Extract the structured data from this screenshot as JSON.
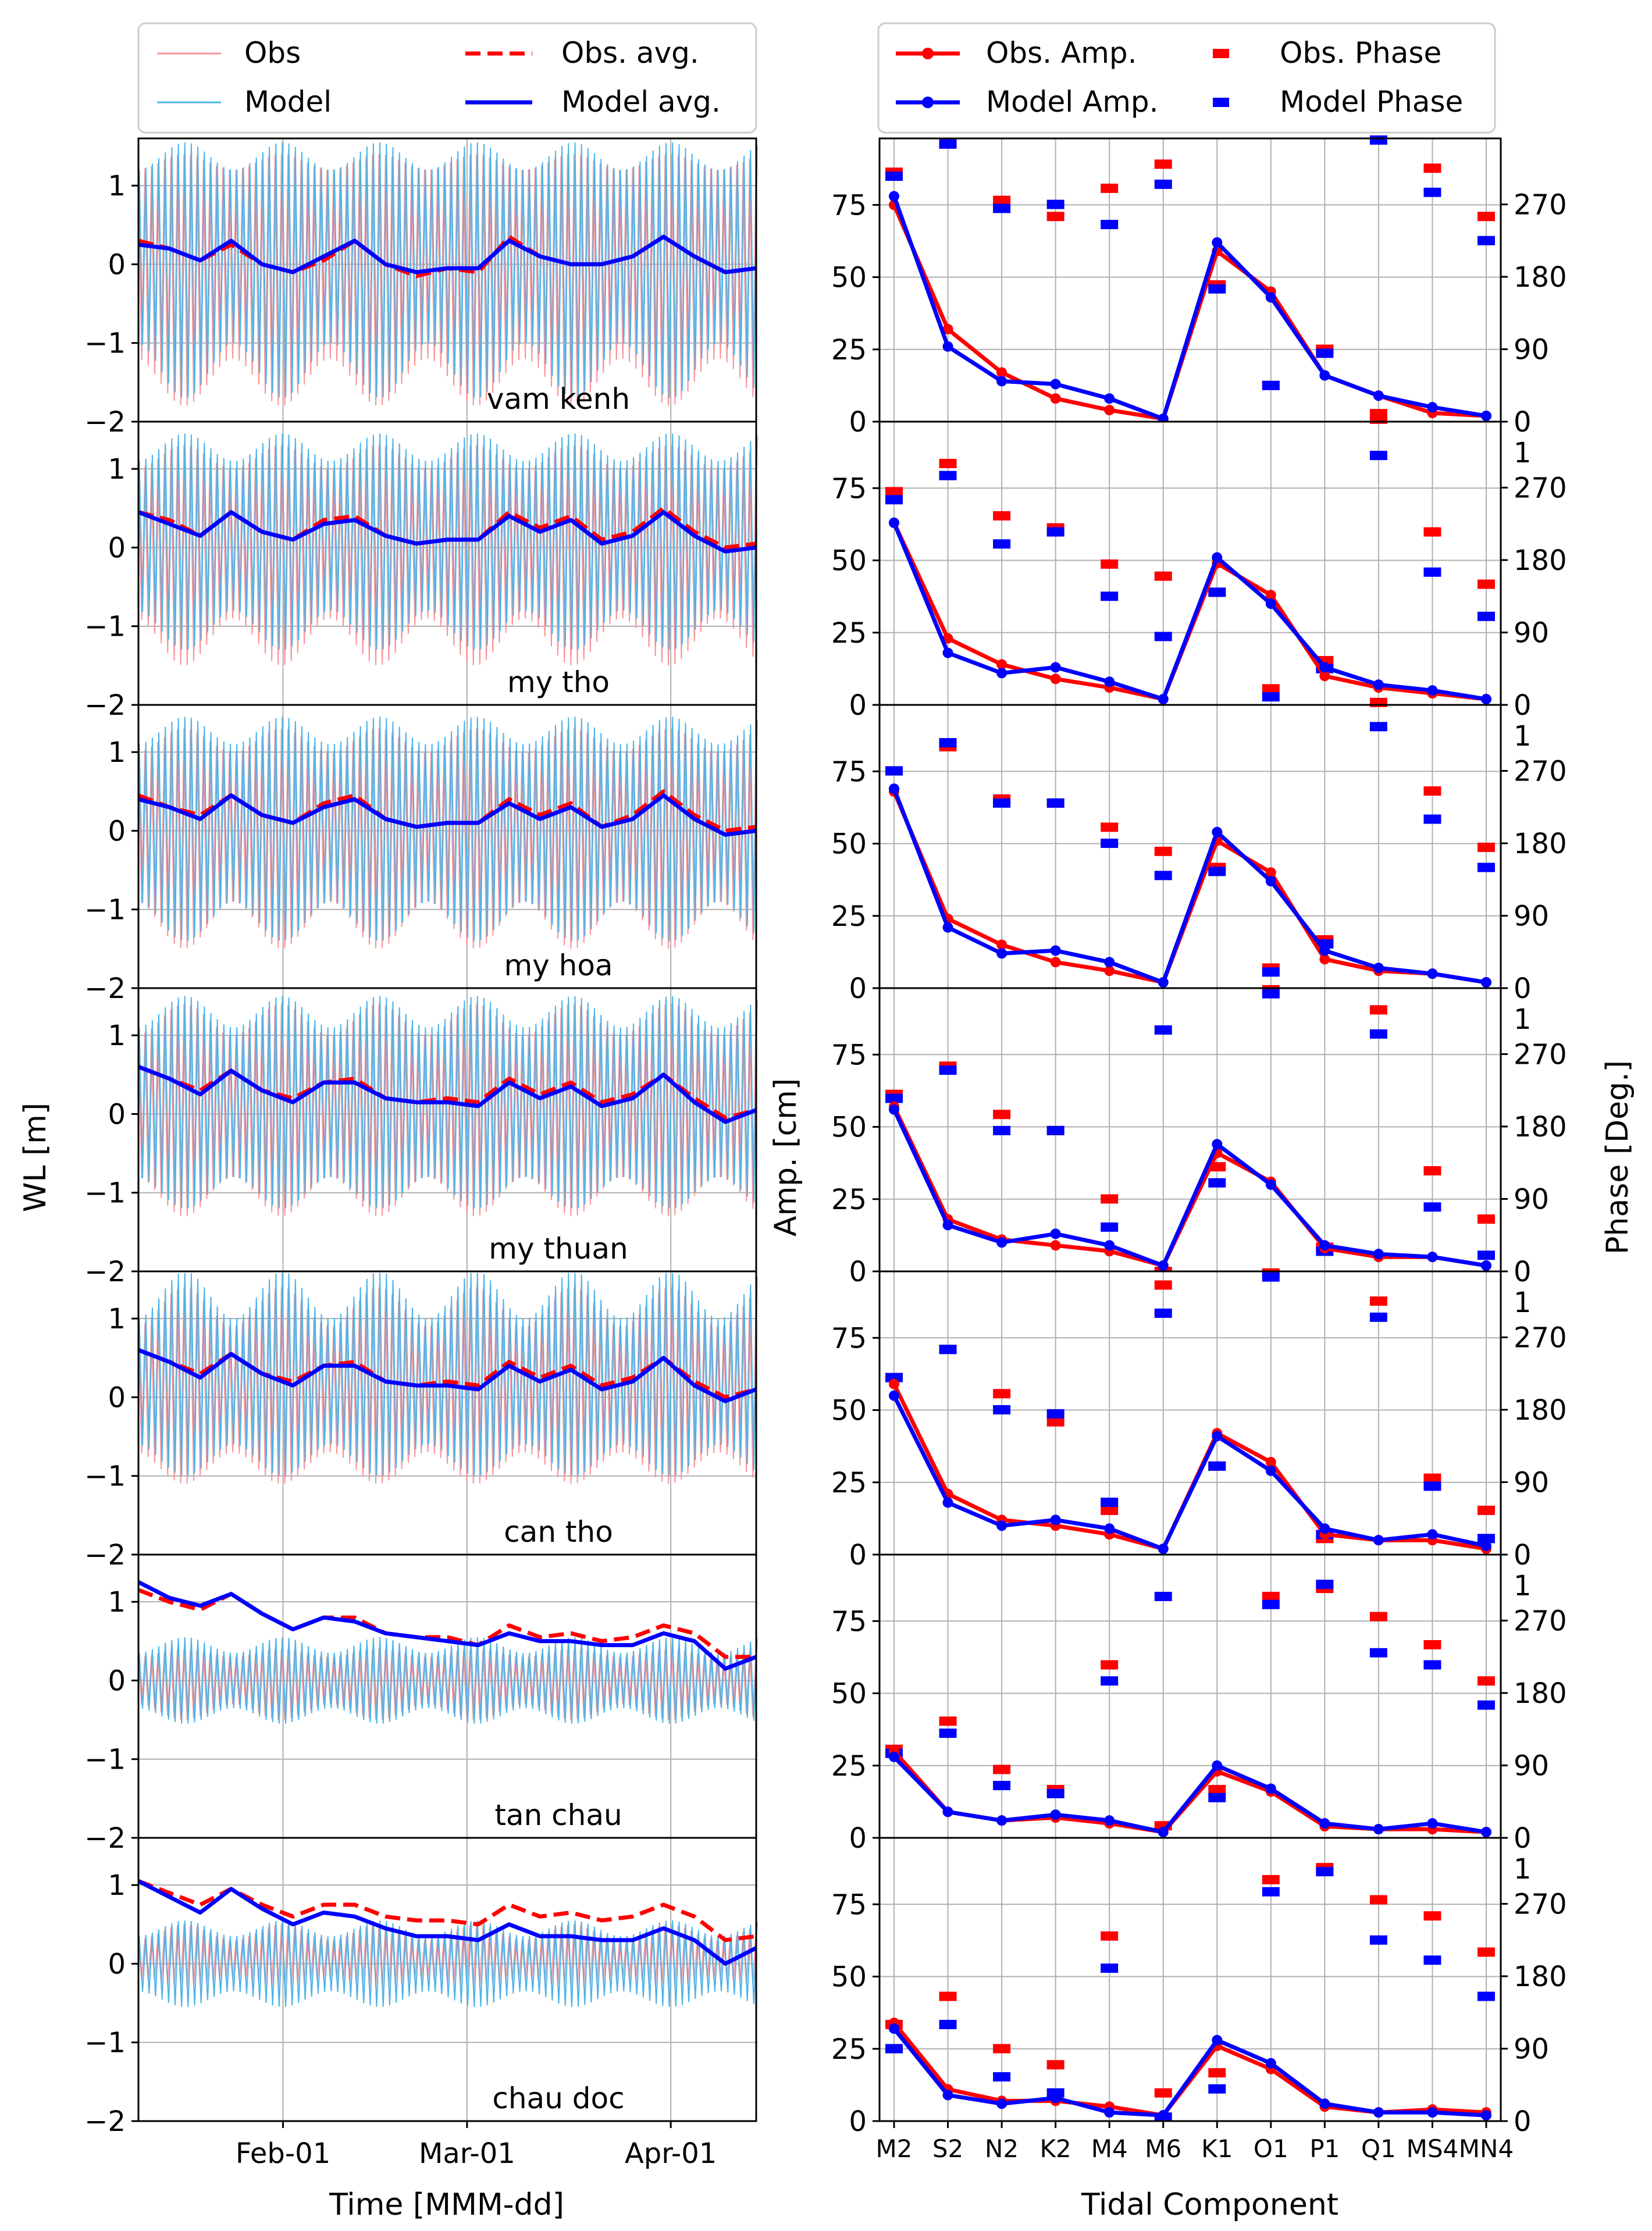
{
  "colors": {
    "obs_line": "#f8959a",
    "model_line": "#4eb3e8",
    "obs_avg": "#ff0000",
    "model_avg": "#0000ff",
    "obs_amp": "#ff0000",
    "model_amp": "#0000ff",
    "grid": "#b0b0b0"
  },
  "left_legend": {
    "obs": "Obs",
    "model": "Model",
    "obs_avg": "Obs. avg.",
    "model_avg": "Model avg."
  },
  "right_legend": {
    "obs_amp": "Obs. Amp.",
    "model_amp": "Model Amp.",
    "obs_phase": "Obs. Phase",
    "model_phase": "Model Phase"
  },
  "left_axes": {
    "ylabel": "WL [m]",
    "xlabel": "Time [MMM-dd]",
    "yticks": [
      "1",
      "0",
      "−1",
      "−2"
    ],
    "xticks": [
      "Feb-01",
      "Mar-01",
      "Apr-01"
    ]
  },
  "right_axes": {
    "ylabel_left": "Amp. [cm]",
    "ylabel_right": "Phase [Deg.]",
    "xlabel": "Tidal Component",
    "amp_ticks": [
      "0",
      "25",
      "50",
      "75"
    ],
    "phase_ticks": [
      "0",
      "90",
      "180",
      "270"
    ],
    "phase_clipped_tick": "1"
  },
  "chart_data": [
    {
      "type": "line",
      "panel": "water-level",
      "xlabel": "Time [MMM-dd]",
      "ylabel": "WL [m]",
      "ylim": [
        -2,
        1.6
      ],
      "x_range_days_from_jan1": [
        9,
        103
      ],
      "xticks": [
        "Feb-01",
        "Mar-01",
        "Apr-01"
      ],
      "grid": true,
      "legend": "top",
      "series_names": [
        "Obs",
        "Model",
        "Obs. avg.",
        "Model avg."
      ],
      "stations": [
        {
          "station": "vam kenh",
          "daily_range": {
            "obs_hi": [
              1.2,
              1.4
            ],
            "obs_lo": [
              -1.2,
              -1.8
            ],
            "model_hi": [
              1.2,
              1.55
            ],
            "model_lo": [
              -1.0,
              -1.7
            ]
          },
          "obs_avg": [
            0.3,
            0.2,
            0.05,
            0.25,
            0.0,
            -0.1,
            0.05,
            0.3,
            0.0,
            -0.15,
            -0.05,
            -0.1,
            0.35,
            0.1,
            0.0,
            0.0,
            0.1,
            0.35,
            0.1,
            -0.1,
            -0.05
          ],
          "model_avg": [
            0.25,
            0.2,
            0.05,
            0.3,
            0.0,
            -0.1,
            0.1,
            0.3,
            0.0,
            -0.1,
            -0.05,
            -0.05,
            0.3,
            0.1,
            0.0,
            0.0,
            0.1,
            0.35,
            0.1,
            -0.1,
            -0.05
          ]
        },
        {
          "station": "my tho",
          "daily_range": {
            "obs_hi": [
              1.0,
              1.3
            ],
            "obs_lo": [
              -0.9,
              -1.5
            ],
            "model_hi": [
              1.1,
              1.45
            ],
            "model_lo": [
              -0.8,
              -1.3
            ]
          },
          "obs_avg": [
            0.45,
            0.35,
            0.15,
            0.45,
            0.2,
            0.1,
            0.35,
            0.4,
            0.15,
            0.05,
            0.1,
            0.1,
            0.45,
            0.25,
            0.4,
            0.1,
            0.2,
            0.5,
            0.2,
            0.0,
            0.05
          ],
          "model_avg": [
            0.45,
            0.3,
            0.15,
            0.45,
            0.2,
            0.1,
            0.3,
            0.35,
            0.15,
            0.05,
            0.1,
            0.1,
            0.4,
            0.2,
            0.35,
            0.05,
            0.15,
            0.45,
            0.15,
            -0.05,
            0.0
          ]
        },
        {
          "station": "my hoa",
          "daily_range": {
            "obs_hi": [
              1.0,
              1.3
            ],
            "obs_lo": [
              -0.9,
              -1.5
            ],
            "model_hi": [
              1.1,
              1.45
            ],
            "model_lo": [
              -0.9,
              -1.4
            ]
          },
          "obs_avg": [
            0.45,
            0.3,
            0.2,
            0.45,
            0.2,
            0.1,
            0.35,
            0.45,
            0.15,
            0.05,
            0.1,
            0.1,
            0.4,
            0.2,
            0.35,
            0.05,
            0.2,
            0.5,
            0.2,
            0.0,
            0.05
          ],
          "model_avg": [
            0.4,
            0.3,
            0.15,
            0.45,
            0.2,
            0.1,
            0.3,
            0.4,
            0.15,
            0.05,
            0.1,
            0.1,
            0.35,
            0.15,
            0.3,
            0.05,
            0.15,
            0.45,
            0.15,
            -0.05,
            0.0
          ]
        },
        {
          "station": "my thuan",
          "daily_range": {
            "obs_hi": [
              1.0,
              1.4
            ],
            "obs_lo": [
              -0.8,
              -1.3
            ],
            "model_hi": [
              1.1,
              1.5
            ],
            "model_lo": [
              -0.8,
              -1.2
            ]
          },
          "obs_avg": [
            0.6,
            0.45,
            0.3,
            0.55,
            0.3,
            0.2,
            0.4,
            0.45,
            0.2,
            0.15,
            0.2,
            0.15,
            0.45,
            0.25,
            0.4,
            0.15,
            0.25,
            0.5,
            0.2,
            -0.05,
            0.05
          ],
          "model_avg": [
            0.6,
            0.45,
            0.25,
            0.55,
            0.3,
            0.15,
            0.4,
            0.4,
            0.2,
            0.15,
            0.15,
            0.1,
            0.4,
            0.2,
            0.35,
            0.1,
            0.2,
            0.5,
            0.15,
            -0.1,
            0.05
          ]
        },
        {
          "station": "can tho",
          "daily_range": {
            "obs_hi": [
              0.9,
              1.4
            ],
            "obs_lo": [
              -0.7,
              -1.1
            ],
            "model_hi": [
              1.0,
              1.6
            ],
            "model_lo": [
              -0.6,
              -1.0
            ]
          },
          "obs_avg": [
            0.6,
            0.45,
            0.3,
            0.55,
            0.3,
            0.2,
            0.4,
            0.45,
            0.2,
            0.15,
            0.2,
            0.15,
            0.45,
            0.25,
            0.4,
            0.15,
            0.25,
            0.5,
            0.2,
            0.0,
            0.1
          ],
          "model_avg": [
            0.6,
            0.45,
            0.25,
            0.55,
            0.3,
            0.15,
            0.4,
            0.4,
            0.2,
            0.15,
            0.15,
            0.1,
            0.4,
            0.2,
            0.35,
            0.1,
            0.2,
            0.5,
            0.15,
            -0.05,
            0.1
          ]
        },
        {
          "station": "tan chau",
          "daily_range": {
            "obs_hi": [
              0.3,
              0.4
            ],
            "obs_lo": [
              -0.3,
              -0.5
            ],
            "model_hi": [
              0.35,
              0.55
            ],
            "model_lo": [
              -0.35,
              -0.55
            ]
          },
          "obs_avg": [
            1.15,
            1.0,
            0.9,
            1.1,
            0.85,
            0.65,
            0.8,
            0.8,
            0.6,
            0.55,
            0.55,
            0.45,
            0.7,
            0.55,
            0.6,
            0.5,
            0.55,
            0.7,
            0.6,
            0.3,
            0.3
          ],
          "model_avg": [
            1.25,
            1.05,
            0.95,
            1.1,
            0.85,
            0.65,
            0.8,
            0.75,
            0.6,
            0.55,
            0.5,
            0.45,
            0.6,
            0.5,
            0.5,
            0.45,
            0.45,
            0.6,
            0.5,
            0.15,
            0.3
          ]
        },
        {
          "station": "chau doc",
          "daily_range": {
            "obs_hi": [
              0.3,
              0.5
            ],
            "obs_lo": [
              -0.2,
              -0.3
            ],
            "model_hi": [
              0.35,
              0.55
            ],
            "model_lo": [
              -0.35,
              -0.55
            ]
          },
          "obs_avg": [
            1.05,
            0.9,
            0.75,
            0.95,
            0.75,
            0.6,
            0.75,
            0.75,
            0.6,
            0.55,
            0.55,
            0.5,
            0.75,
            0.6,
            0.65,
            0.55,
            0.6,
            0.75,
            0.6,
            0.3,
            0.35
          ],
          "model_avg": [
            1.05,
            0.85,
            0.65,
            0.95,
            0.7,
            0.5,
            0.65,
            0.6,
            0.45,
            0.35,
            0.35,
            0.3,
            0.5,
            0.35,
            0.35,
            0.3,
            0.3,
            0.45,
            0.3,
            0.0,
            0.2
          ]
        }
      ]
    },
    {
      "type": "line",
      "panel": "tidal-components",
      "categories": [
        "M2",
        "S2",
        "N2",
        "K2",
        "M4",
        "M6",
        "K1",
        "O1",
        "P1",
        "Q1",
        "MS4",
        "MN4"
      ],
      "xlabel": "Tidal Component",
      "ylabel": "Amp. [cm]",
      "ylabel_right": "Phase [Deg.]",
      "ylim_amp": [
        0,
        98
      ],
      "ylim_phase": [
        0,
        352
      ],
      "grid": true,
      "legend": "top",
      "stations": [
        {
          "station": "vam kenh",
          "obs_amp": [
            75,
            32,
            17,
            8,
            4,
            1,
            59,
            45,
            16,
            9,
            3,
            2
          ],
          "model_amp": [
            78,
            26,
            14,
            13,
            8,
            1,
            62,
            43,
            16,
            9,
            5,
            2
          ],
          "obs_phase": [
            310,
            345,
            275,
            255,
            290,
            320,
            170,
            45,
            90,
            10,
            315,
            255
          ],
          "model_phase": [
            305,
            345,
            265,
            270,
            245,
            295,
            165,
            45,
            85,
            350,
            285,
            225
          ]
        },
        {
          "station": "my tho",
          "obs_amp": [
            63,
            23,
            14,
            9,
            6,
            2,
            49,
            38,
            10,
            6,
            4,
            2
          ],
          "model_amp": [
            63,
            18,
            11,
            13,
            8,
            2,
            51,
            35,
            13,
            7,
            5,
            2
          ],
          "obs_phase": [
            265,
            300,
            235,
            220,
            175,
            160,
            140,
            20,
            55,
            355,
            215,
            150
          ],
          "model_phase": [
            255,
            285,
            200,
            215,
            135,
            85,
            140,
            10,
            45,
            310,
            165,
            110
          ]
        },
        {
          "station": "my hoa",
          "obs_amp": [
            68,
            24,
            15,
            9,
            6,
            2,
            51,
            40,
            10,
            6,
            5,
            2
          ],
          "model_amp": [
            69,
            21,
            12,
            13,
            9,
            2,
            54,
            37,
            13,
            7,
            5,
            2
          ],
          "obs_phase": [
            270,
            300,
            235,
            230,
            200,
            170,
            150,
            25,
            60,
            355,
            245,
            175
          ],
          "model_phase": [
            270,
            305,
            230,
            230,
            180,
            140,
            145,
            20,
            55,
            325,
            210,
            150
          ]
        },
        {
          "station": "my thuan",
          "obs_amp": [
            57,
            18,
            11,
            9,
            7,
            2,
            41,
            31,
            8,
            5,
            5,
            2
          ],
          "model_amp": [
            56,
            16,
            10,
            13,
            9,
            2,
            44,
            30,
            9,
            6,
            5,
            2
          ],
          "obs_phase": [
            220,
            255,
            195,
            175,
            90,
            0,
            130,
            350,
            30,
            325,
            125,
            65
          ],
          "model_phase": [
            215,
            250,
            175,
            175,
            55,
            300,
            110,
            345,
            25,
            295,
            80,
            20
          ]
        },
        {
          "station": "can tho",
          "obs_amp": [
            59,
            21,
            12,
            10,
            7,
            2,
            42,
            32,
            7,
            5,
            5,
            2
          ],
          "model_amp": [
            55,
            18,
            10,
            12,
            9,
            2,
            41,
            29,
            9,
            5,
            7,
            3
          ],
          "obs_phase": [
            220,
            255,
            200,
            165,
            55,
            335,
            110,
            350,
            20,
            315,
            95,
            55
          ],
          "model_phase": [
            220,
            255,
            180,
            175,
            65,
            300,
            110,
            345,
            25,
            295,
            85,
            20
          ]
        },
        {
          "station": "tan chau",
          "obs_amp": [
            30,
            9,
            6,
            7,
            5,
            2,
            23,
            16,
            4,
            3,
            3,
            2
          ],
          "model_amp": [
            28,
            9,
            6,
            8,
            6,
            2,
            25,
            17,
            5,
            3,
            5,
            2
          ],
          "obs_phase": [
            110,
            145,
            85,
            60,
            215,
            15,
            60,
            300,
            310,
            275,
            240,
            195
          ],
          "model_phase": [
            105,
            130,
            65,
            55,
            195,
            300,
            50,
            290,
            315,
            230,
            215,
            165
          ]
        },
        {
          "station": "chau doc",
          "obs_amp": [
            34,
            11,
            7,
            7,
            5,
            2,
            26,
            18,
            5,
            3,
            4,
            3
          ],
          "model_amp": [
            32,
            9,
            6,
            8,
            3,
            2,
            28,
            20,
            6,
            3,
            3,
            2
          ],
          "obs_phase": [
            120,
            155,
            90,
            70,
            230,
            35,
            60,
            300,
            315,
            275,
            255,
            210
          ],
          "model_phase": [
            90,
            120,
            55,
            35,
            190,
            5,
            40,
            285,
            310,
            225,
            200,
            155
          ]
        }
      ]
    }
  ]
}
